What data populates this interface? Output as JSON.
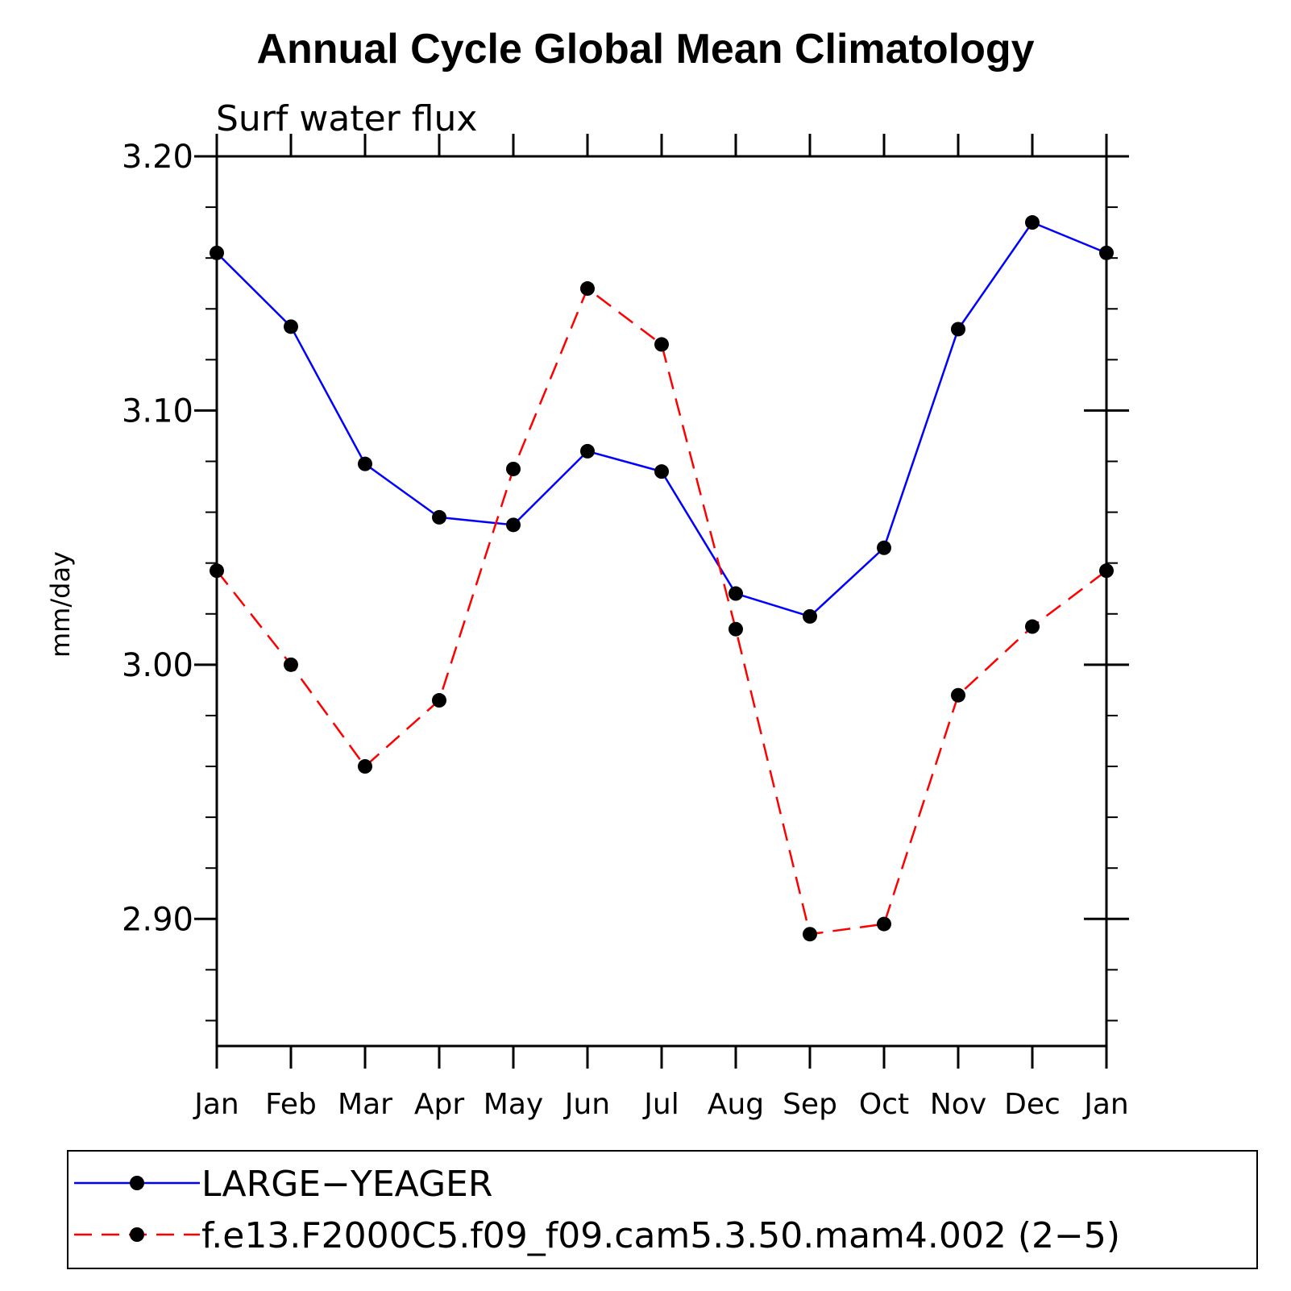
{
  "chart_data": {
    "type": "line",
    "title": "Annual Cycle Global Mean Climatology",
    "subtitle": "Surf  water  flux",
    "xlabel": "",
    "ylabel": "mm/day",
    "categories": [
      "Jan",
      "Feb",
      "Mar",
      "Apr",
      "May",
      "Jun",
      "Jul",
      "Aug",
      "Sep",
      "Oct",
      "Nov",
      "Dec",
      "Jan"
    ],
    "ylim": [
      2.85,
      3.2
    ],
    "yticks": [
      2.9,
      3.0,
      3.1,
      3.2
    ],
    "ytick_labels": [
      "2.90",
      "3.00",
      "3.10",
      "3.20"
    ],
    "series": [
      {
        "name": "LARGE−YEAGER",
        "color": "#0000ff",
        "dash": "solid",
        "values": [
          3.162,
          3.133,
          3.079,
          3.058,
          3.055,
          3.084,
          3.076,
          3.028,
          3.019,
          3.046,
          3.132,
          3.174,
          3.162
        ]
      },
      {
        "name": "f.e13.F2000C5.f09_f09.cam5.3.50.mam4.002 (2−5)",
        "color": "#ff0000",
        "dash": "dashed",
        "values": [
          3.037,
          3.0,
          2.96,
          2.986,
          3.077,
          3.148,
          3.126,
          3.014,
          2.894,
          2.898,
          2.988,
          3.015,
          3.037
        ]
      }
    ],
    "legend_position": "bottom"
  }
}
